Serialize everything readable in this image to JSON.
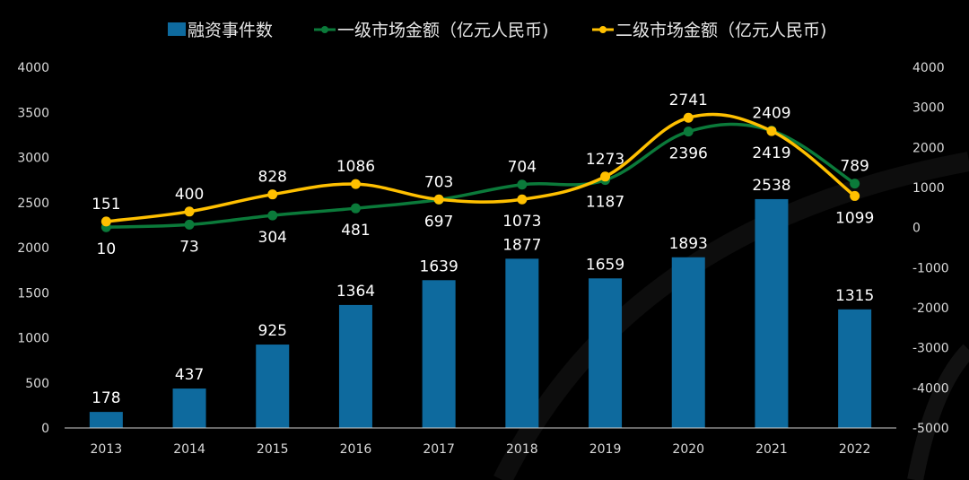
{
  "chart_data": {
    "type": "bar+line",
    "categories": [
      "2013",
      "2014",
      "2015",
      "2016",
      "2017",
      "2018",
      "2019",
      "2020",
      "2021",
      "2022"
    ],
    "series": [
      {
        "name": "融资事件数",
        "type": "bar",
        "axis": "left",
        "color": "#0E6A9E",
        "values": [
          178,
          437,
          925,
          1364,
          1639,
          1877,
          1659,
          1893,
          2538,
          1315
        ]
      },
      {
        "name": "一级市场金额（亿元人民币)",
        "type": "line",
        "axis": "right",
        "color": "#0B7A3A",
        "values": [
          10,
          73,
          304,
          481,
          697,
          1073,
          1187,
          2396,
          2419,
          1099
        ]
      },
      {
        "name": "二级市场金额（亿元人民币)",
        "type": "line",
        "axis": "right",
        "color": "#FFC000",
        "values": [
          151,
          400,
          828,
          1086,
          703,
          704,
          1273,
          2741,
          2409,
          789
        ]
      }
    ],
    "left_axis": {
      "range": [
        0,
        4000
      ],
      "ticks": [
        "0",
        "500",
        "1000",
        "1500",
        "2000",
        "2500",
        "3000",
        "3500",
        "4000"
      ]
    },
    "right_axis": {
      "range": [
        -5000,
        4000
      ],
      "ticks": [
        "-5000",
        "-4000",
        "-3000",
        "-2000",
        "-1000",
        "0",
        "1000",
        "2000",
        "3000",
        "4000"
      ]
    },
    "legend": {
      "placement": "top"
    },
    "grid": false,
    "title": "",
    "xlabel": "",
    "ylabel": ""
  }
}
